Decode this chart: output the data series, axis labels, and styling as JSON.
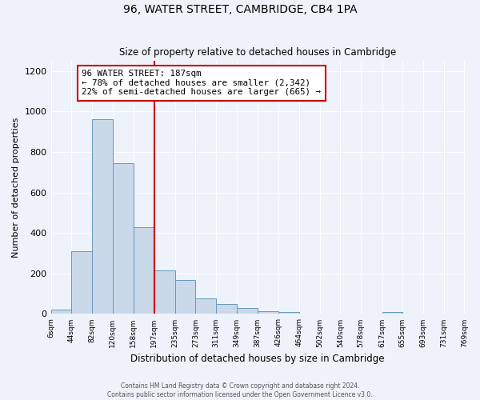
{
  "title": "96, WATER STREET, CAMBRIDGE, CB4 1PA",
  "subtitle": "Size of property relative to detached houses in Cambridge",
  "xlabel": "Distribution of detached houses by size in Cambridge",
  "ylabel": "Number of detached properties",
  "bar_color": "#c9d9ea",
  "bar_edge_color": "#6699bb",
  "background_color": "#eef2fa",
  "grid_color": "#ffffff",
  "bin_edges": [
    6,
    44,
    82,
    120,
    158,
    197,
    235,
    273,
    311,
    349,
    387,
    426,
    464,
    502,
    540,
    578,
    617,
    655,
    693,
    731,
    769
  ],
  "bin_labels": [
    "6sqm",
    "44sqm",
    "82sqm",
    "120sqm",
    "158sqm",
    "197sqm",
    "235sqm",
    "273sqm",
    "311sqm",
    "349sqm",
    "387sqm",
    "426sqm",
    "464sqm",
    "502sqm",
    "540sqm",
    "578sqm",
    "617sqm",
    "655sqm",
    "693sqm",
    "731sqm",
    "769sqm"
  ],
  "bar_heights": [
    20,
    310,
    960,
    745,
    430,
    215,
    168,
    75,
    48,
    30,
    12,
    8,
    0,
    0,
    0,
    0,
    8,
    0,
    0,
    0,
    0
  ],
  "vline_x": 197,
  "vline_color": "#cc0000",
  "annotation_title": "96 WATER STREET: 187sqm",
  "annotation_line1": "← 78% of detached houses are smaller (2,342)",
  "annotation_line2": "22% of semi-detached houses are larger (665) →",
  "annotation_box_color": "#cc0000",
  "ylim": [
    0,
    1250
  ],
  "yticks": [
    0,
    200,
    400,
    600,
    800,
    1000,
    1200
  ],
  "footer1": "Contains HM Land Registry data © Crown copyright and database right 2024.",
  "footer2": "Contains public sector information licensed under the Open Government Licence v3.0."
}
